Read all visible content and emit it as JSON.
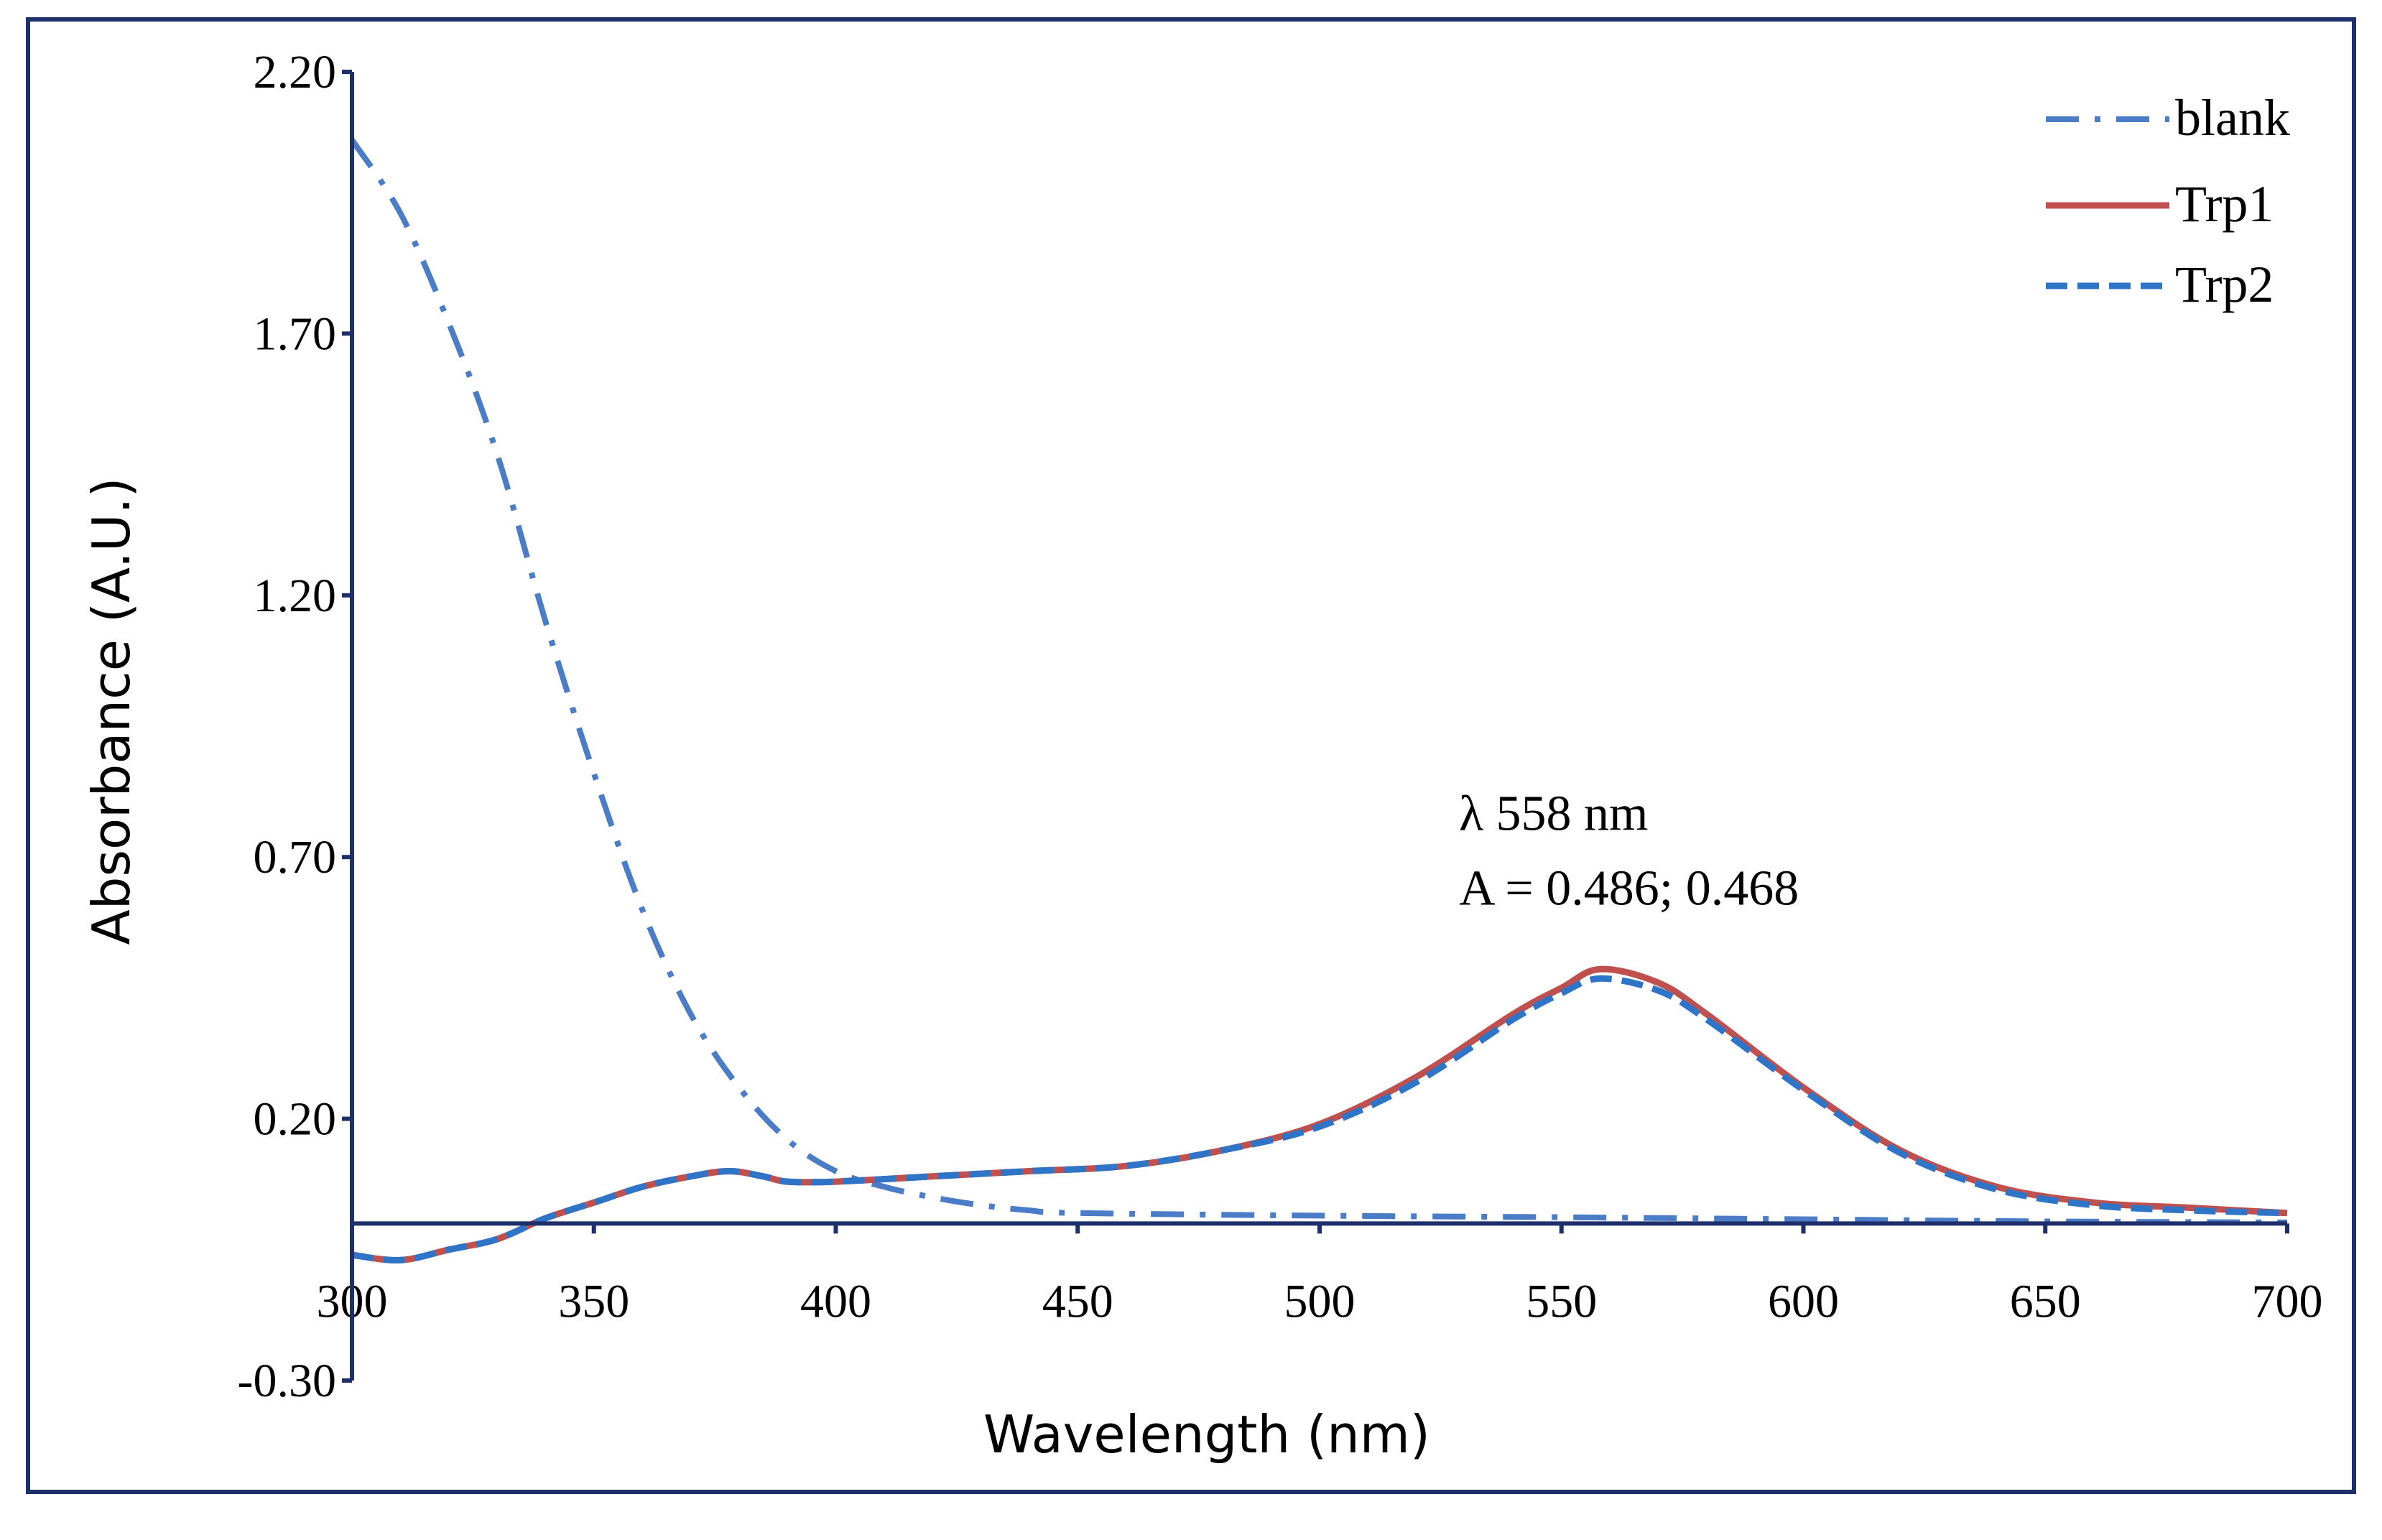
{
  "chart_data": {
    "type": "line",
    "title": "",
    "xlabel": "Wavelength (nm)",
    "ylabel": "Absorbance (A.U.)",
    "xlim": [
      300,
      700
    ],
    "ylim": [
      -0.3,
      2.2
    ],
    "x_ticks": [
      "300",
      "350",
      "400",
      "450",
      "500",
      "550",
      "600",
      "650",
      "700"
    ],
    "y_ticks": [
      "2.20",
      "1.70",
      "1.20",
      "0.70",
      "0.20",
      "-0.30"
    ],
    "legend_position": "top-right",
    "colors": {
      "blank": "#4a7cc7",
      "Trp1": "#c0504d",
      "Trp2": "#2e75c8",
      "axis": "#1f2f6b"
    },
    "annotation": {
      "line1": "λ 558 nm",
      "line2": "A = 0.486; 0.468",
      "x": 560,
      "y": 0.62
    },
    "series": [
      {
        "name": "blank",
        "style": "dashdot",
        "x": [
          300,
          310,
          320,
          330,
          340,
          350,
          360,
          370,
          380,
          390,
          400,
          410,
          420,
          430,
          440,
          450,
          500,
          550,
          600,
          650,
          700
        ],
        "y": [
          2.07,
          1.93,
          1.72,
          1.47,
          1.15,
          0.86,
          0.6,
          0.4,
          0.26,
          0.16,
          0.1,
          0.07,
          0.05,
          0.035,
          0.025,
          0.02,
          0.015,
          0.012,
          0.008,
          0.004,
          0.002
        ]
      },
      {
        "name": "Trp1",
        "style": "solid",
        "x": [
          300,
          310,
          320,
          330,
          340,
          350,
          360,
          370,
          378,
          385,
          390,
          400,
          420,
          440,
          460,
          480,
          500,
          520,
          540,
          550,
          558,
          570,
          580,
          600,
          620,
          640,
          660,
          680,
          700
        ],
        "y": [
          -0.06,
          -0.07,
          -0.05,
          -0.03,
          0.01,
          0.04,
          0.07,
          0.09,
          0.1,
          0.09,
          0.08,
          0.08,
          0.09,
          0.1,
          0.11,
          0.14,
          0.19,
          0.28,
          0.4,
          0.45,
          0.486,
          0.46,
          0.4,
          0.26,
          0.14,
          0.07,
          0.04,
          0.03,
          0.02
        ]
      },
      {
        "name": "Trp2",
        "style": "dashed",
        "x": [
          300,
          310,
          320,
          330,
          340,
          350,
          360,
          370,
          378,
          385,
          390,
          400,
          420,
          440,
          460,
          480,
          500,
          520,
          540,
          550,
          558,
          570,
          580,
          600,
          620,
          640,
          660,
          680,
          700
        ],
        "y": [
          -0.06,
          -0.07,
          -0.05,
          -0.03,
          0.01,
          0.04,
          0.07,
          0.09,
          0.1,
          0.09,
          0.08,
          0.08,
          0.09,
          0.1,
          0.11,
          0.14,
          0.185,
          0.27,
          0.39,
          0.44,
          0.468,
          0.445,
          0.39,
          0.255,
          0.135,
          0.065,
          0.035,
          0.025,
          0.02
        ]
      }
    ]
  }
}
